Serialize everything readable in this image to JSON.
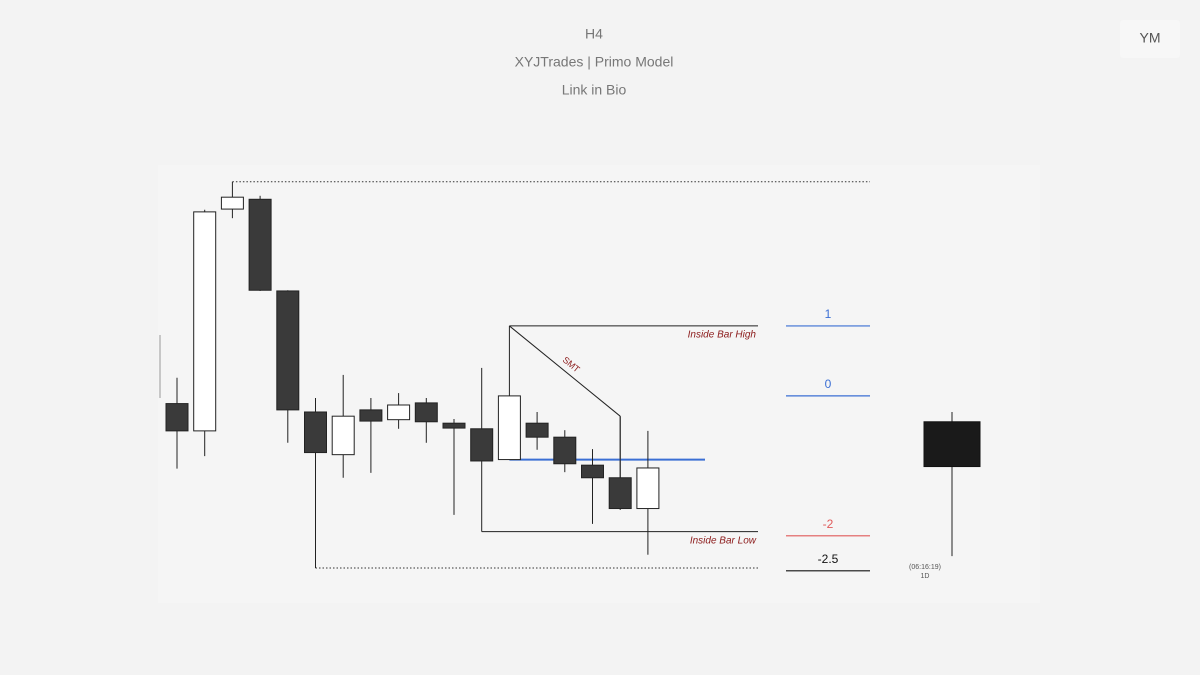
{
  "chart_data": {
    "type": "candlestick",
    "title": "H4",
    "subtitle": "XYJTrades | Primo Model",
    "caption": "Link in Bio",
    "symbol": "YM",
    "up_color": "#ffffff",
    "down_color": "#3a3a3a",
    "ylim": [
      -2.96,
      3.3
    ],
    "open": [
      -0.11,
      -0.5,
      2.67,
      2.81,
      1.5,
      -0.23,
      -0.84,
      -0.2,
      -0.34,
      -0.1,
      -0.39,
      -0.47,
      -0.91,
      -0.39,
      -0.59,
      -0.99,
      -1.17,
      -1.61
    ],
    "high": [
      0.26,
      2.66,
      3.06,
      2.86,
      1.51,
      -0.03,
      0.3,
      -0.03,
      0.04,
      -0.03,
      -0.33,
      0.4,
      1,
      -0.23,
      -0.49,
      -0.76,
      -0.29,
      -0.5
    ],
    "low": [
      -1.04,
      -0.86,
      2.54,
      1.5,
      -0.67,
      -2.46,
      -1.17,
      -1.1,
      -0.47,
      -0.67,
      -1.7,
      -0.93,
      -0.91,
      -0.77,
      -1.09,
      -1.83,
      -1.63,
      -2.27
    ],
    "close": [
      -0.5,
      2.63,
      2.84,
      1.51,
      -0.2,
      -0.81,
      -0.29,
      -0.36,
      -0.13,
      -0.37,
      -0.46,
      -0.93,
      0,
      -0.59,
      -0.97,
      -1.17,
      -1.61,
      -1.03
    ],
    "annotations": [
      {
        "text": "Inside Bar High",
        "value": 1
      },
      {
        "text": "Inside Bar Low",
        "value": -1.94
      },
      {
        "text": "SMT"
      }
    ],
    "levels": [
      {
        "value": 1,
        "color": "#3b6fd4"
      },
      {
        "value": 0,
        "color": "#3b6fd4"
      },
      {
        "value": -2,
        "color": "#e05a5a"
      },
      {
        "value": -2.5,
        "color": "#111111"
      }
    ],
    "htf_candle": {
      "open": -0.37,
      "high": -0.23,
      "low": -2.29,
      "close": -1.01,
      "color": "#1a1a1a",
      "timer": "(06:16:19)",
      "timeframe": "1D"
    }
  }
}
